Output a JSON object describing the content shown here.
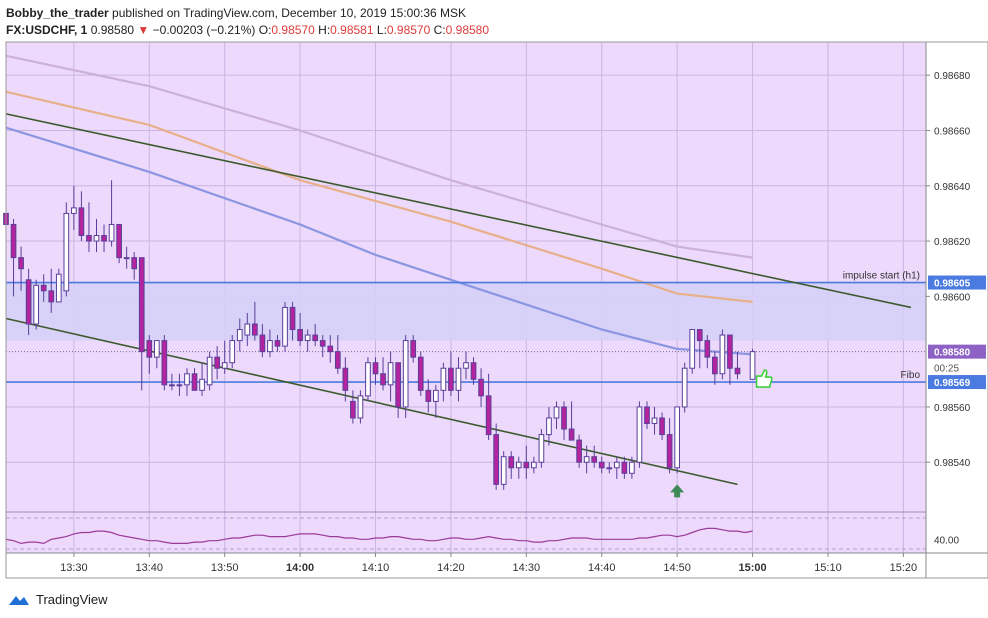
{
  "header": {
    "author": "Bobby_the_trader",
    "published_text": "published on TradingView.com, December 10, 2019 15:00:36 MSK",
    "symbol": "FX:USDCHF, 1",
    "last": "0.98580",
    "change_arrow": "▼",
    "change": "−0.00203 (−0.21%)",
    "o_label": "O:",
    "o": "0.98570",
    "h_label": "H:",
    "h": "0.98581",
    "l_label": "L:",
    "l": "0.98570",
    "c_label": "C:",
    "c": "0.98580"
  },
  "footer": {
    "brand": "TradingView",
    "logo_icon": "tradingview-logo-icon"
  },
  "colors": {
    "background": "#ecd9fb",
    "zone": "#d6d0f7",
    "up_candle": "#ffffff",
    "down_candle": "#b3249e",
    "candle_border": "#5a3f9a",
    "ma_fast": "#8c95e2",
    "ma_mid": "#e8b08a",
    "ma_slow": "#cbb1da",
    "trendline": "#3d5a2c",
    "level_line": "#4b7be0",
    "rsi": "#9c3a9a",
    "hand_icon": "#3ecf3e",
    "arrow_icon": "#3f8a57"
  },
  "chart_data": {
    "type": "candlestick",
    "symbol": "FX:USDCHF",
    "timeframe": "1",
    "ylim": [
      0.98522,
      0.98692
    ],
    "y_ticks": [
      "0.98680",
      "0.98660",
      "0.98640",
      "0.98620",
      "0.98600",
      "0.98560",
      "0.98540"
    ],
    "x_ticks": [
      "13:30",
      "13:40",
      "13:50",
      "14:00",
      "14:10",
      "14:20",
      "14:30",
      "14:40",
      "14:50",
      "15:00",
      "15:10",
      "15:20"
    ],
    "x_range_minutes": [
      "13:21",
      "15:23"
    ],
    "candles": [
      {
        "t": "13:21",
        "o": 0.9863,
        "h": 0.98638,
        "l": 0.98618,
        "c": 0.98626
      },
      {
        "t": "13:22",
        "o": 0.98626,
        "h": 0.98628,
        "l": 0.986,
        "c": 0.98614
      },
      {
        "t": "13:23",
        "o": 0.98614,
        "h": 0.98618,
        "l": 0.98602,
        "c": 0.9861
      },
      {
        "t": "13:24",
        "o": 0.98606,
        "h": 0.9861,
        "l": 0.98586,
        "c": 0.9859
      },
      {
        "t": "13:25",
        "o": 0.9859,
        "h": 0.98606,
        "l": 0.98588,
        "c": 0.98604
      },
      {
        "t": "13:26",
        "o": 0.98604,
        "h": 0.98608,
        "l": 0.98598,
        "c": 0.98602
      },
      {
        "t": "13:27",
        "o": 0.98602,
        "h": 0.9861,
        "l": 0.98594,
        "c": 0.98598
      },
      {
        "t": "13:28",
        "o": 0.98598,
        "h": 0.9861,
        "l": 0.98598,
        "c": 0.98608
      },
      {
        "t": "13:29",
        "o": 0.98602,
        "h": 0.98634,
        "l": 0.986,
        "c": 0.9863
      },
      {
        "t": "13:30",
        "o": 0.9863,
        "h": 0.9864,
        "l": 0.98624,
        "c": 0.98632
      },
      {
        "t": "13:31",
        "o": 0.98632,
        "h": 0.98638,
        "l": 0.9862,
        "c": 0.98622
      },
      {
        "t": "13:32",
        "o": 0.98622,
        "h": 0.98634,
        "l": 0.98616,
        "c": 0.9862
      },
      {
        "t": "13:33",
        "o": 0.9862,
        "h": 0.98628,
        "l": 0.98616,
        "c": 0.98622
      },
      {
        "t": "13:34",
        "o": 0.98622,
        "h": 0.98626,
        "l": 0.98616,
        "c": 0.9862
      },
      {
        "t": "13:35",
        "o": 0.9862,
        "h": 0.98642,
        "l": 0.98618,
        "c": 0.98626
      },
      {
        "t": "13:36",
        "o": 0.98626,
        "h": 0.98626,
        "l": 0.98612,
        "c": 0.98614
      },
      {
        "t": "13:37",
        "o": 0.98614,
        "h": 0.98618,
        "l": 0.9861,
        "c": 0.98614
      },
      {
        "t": "13:38",
        "o": 0.98614,
        "h": 0.98616,
        "l": 0.98606,
        "c": 0.9861
      },
      {
        "t": "13:39",
        "o": 0.98614,
        "h": 0.98614,
        "l": 0.98566,
        "c": 0.9858
      },
      {
        "t": "13:40",
        "o": 0.98584,
        "h": 0.98586,
        "l": 0.98572,
        "c": 0.98578
      },
      {
        "t": "13:41",
        "o": 0.98578,
        "h": 0.98584,
        "l": 0.98574,
        "c": 0.98584
      },
      {
        "t": "13:42",
        "o": 0.98584,
        "h": 0.98586,
        "l": 0.98566,
        "c": 0.98568
      },
      {
        "t": "13:43",
        "o": 0.98568,
        "h": 0.98572,
        "l": 0.98566,
        "c": 0.98568
      },
      {
        "t": "13:44",
        "o": 0.98568,
        "h": 0.98572,
        "l": 0.98564,
        "c": 0.98568
      },
      {
        "t": "13:45",
        "o": 0.98568,
        "h": 0.98574,
        "l": 0.98564,
        "c": 0.98572
      },
      {
        "t": "13:46",
        "o": 0.98572,
        "h": 0.98574,
        "l": 0.98566,
        "c": 0.98566
      },
      {
        "t": "13:47",
        "o": 0.98566,
        "h": 0.98576,
        "l": 0.98564,
        "c": 0.9857
      },
      {
        "t": "13:48",
        "o": 0.98568,
        "h": 0.9858,
        "l": 0.98566,
        "c": 0.98578
      },
      {
        "t": "13:49",
        "o": 0.98578,
        "h": 0.98582,
        "l": 0.9857,
        "c": 0.98574
      },
      {
        "t": "13:50",
        "o": 0.98574,
        "h": 0.98584,
        "l": 0.98572,
        "c": 0.98576
      },
      {
        "t": "13:51",
        "o": 0.98576,
        "h": 0.98586,
        "l": 0.98574,
        "c": 0.98584
      },
      {
        "t": "13:52",
        "o": 0.98584,
        "h": 0.98592,
        "l": 0.9858,
        "c": 0.98588
      },
      {
        "t": "13:53",
        "o": 0.98586,
        "h": 0.98594,
        "l": 0.98582,
        "c": 0.9859
      },
      {
        "t": "13:54",
        "o": 0.9859,
        "h": 0.98598,
        "l": 0.98584,
        "c": 0.98586
      },
      {
        "t": "13:55",
        "o": 0.98586,
        "h": 0.9859,
        "l": 0.98578,
        "c": 0.9858
      },
      {
        "t": "13:56",
        "o": 0.9858,
        "h": 0.98588,
        "l": 0.98578,
        "c": 0.98584
      },
      {
        "t": "13:57",
        "o": 0.98584,
        "h": 0.98586,
        "l": 0.9858,
        "c": 0.98582
      },
      {
        "t": "13:58",
        "o": 0.98582,
        "h": 0.98598,
        "l": 0.9858,
        "c": 0.98596
      },
      {
        "t": "13:59",
        "o": 0.98596,
        "h": 0.98598,
        "l": 0.98584,
        "c": 0.98588
      },
      {
        "t": "14:00",
        "o": 0.98588,
        "h": 0.98594,
        "l": 0.98582,
        "c": 0.98584
      },
      {
        "t": "14:01",
        "o": 0.98584,
        "h": 0.98588,
        "l": 0.9858,
        "c": 0.98586
      },
      {
        "t": "14:02",
        "o": 0.98586,
        "h": 0.9859,
        "l": 0.98582,
        "c": 0.98584
      },
      {
        "t": "14:03",
        "o": 0.98584,
        "h": 0.98586,
        "l": 0.98578,
        "c": 0.98582
      },
      {
        "t": "14:04",
        "o": 0.98582,
        "h": 0.98586,
        "l": 0.98576,
        "c": 0.9858
      },
      {
        "t": "14:05",
        "o": 0.9858,
        "h": 0.98586,
        "l": 0.98572,
        "c": 0.98574
      },
      {
        "t": "14:06",
        "o": 0.98574,
        "h": 0.98578,
        "l": 0.98562,
        "c": 0.98566
      },
      {
        "t": "14:07",
        "o": 0.98562,
        "h": 0.98566,
        "l": 0.98554,
        "c": 0.98556
      },
      {
        "t": "14:08",
        "o": 0.98556,
        "h": 0.98566,
        "l": 0.98554,
        "c": 0.98564
      },
      {
        "t": "14:09",
        "o": 0.98564,
        "h": 0.98578,
        "l": 0.98562,
        "c": 0.98576
      },
      {
        "t": "14:10",
        "o": 0.98576,
        "h": 0.98578,
        "l": 0.98568,
        "c": 0.98572
      },
      {
        "t": "14:11",
        "o": 0.98572,
        "h": 0.98578,
        "l": 0.98566,
        "c": 0.98568
      },
      {
        "t": "14:12",
        "o": 0.98568,
        "h": 0.9858,
        "l": 0.98562,
        "c": 0.98576
      },
      {
        "t": "14:13",
        "o": 0.98576,
        "h": 0.98576,
        "l": 0.98556,
        "c": 0.9856
      },
      {
        "t": "14:14",
        "o": 0.9856,
        "h": 0.98586,
        "l": 0.98556,
        "c": 0.98584
      },
      {
        "t": "14:15",
        "o": 0.98584,
        "h": 0.98586,
        "l": 0.98576,
        "c": 0.98578
      },
      {
        "t": "14:16",
        "o": 0.98578,
        "h": 0.9858,
        "l": 0.98564,
        "c": 0.98566
      },
      {
        "t": "14:17",
        "o": 0.98566,
        "h": 0.9857,
        "l": 0.98558,
        "c": 0.98562
      },
      {
        "t": "14:18",
        "o": 0.98562,
        "h": 0.98568,
        "l": 0.98556,
        "c": 0.98566
      },
      {
        "t": "14:19",
        "o": 0.98566,
        "h": 0.98576,
        "l": 0.98562,
        "c": 0.98574
      },
      {
        "t": "14:20",
        "o": 0.98574,
        "h": 0.9858,
        "l": 0.98564,
        "c": 0.98566
      },
      {
        "t": "14:21",
        "o": 0.98566,
        "h": 0.98578,
        "l": 0.98562,
        "c": 0.98574
      },
      {
        "t": "14:22",
        "o": 0.98574,
        "h": 0.9858,
        "l": 0.9857,
        "c": 0.98576
      },
      {
        "t": "14:23",
        "o": 0.98576,
        "h": 0.98578,
        "l": 0.98568,
        "c": 0.9857
      },
      {
        "t": "14:24",
        "o": 0.9857,
        "h": 0.98574,
        "l": 0.9856,
        "c": 0.98564
      },
      {
        "t": "14:25",
        "o": 0.98564,
        "h": 0.98572,
        "l": 0.98548,
        "c": 0.9855
      },
      {
        "t": "14:26",
        "o": 0.9855,
        "h": 0.98554,
        "l": 0.9853,
        "c": 0.98532
      },
      {
        "t": "14:27",
        "o": 0.98532,
        "h": 0.98544,
        "l": 0.9853,
        "c": 0.98542
      },
      {
        "t": "14:28",
        "o": 0.98542,
        "h": 0.98544,
        "l": 0.98534,
        "c": 0.98538
      },
      {
        "t": "14:29",
        "o": 0.98538,
        "h": 0.98542,
        "l": 0.98534,
        "c": 0.9854
      },
      {
        "t": "14:30",
        "o": 0.9854,
        "h": 0.98546,
        "l": 0.98534,
        "c": 0.98538
      },
      {
        "t": "14:31",
        "o": 0.98538,
        "h": 0.98542,
        "l": 0.98536,
        "c": 0.9854
      },
      {
        "t": "14:32",
        "o": 0.9854,
        "h": 0.98552,
        "l": 0.98538,
        "c": 0.9855
      },
      {
        "t": "14:33",
        "o": 0.9855,
        "h": 0.9856,
        "l": 0.98546,
        "c": 0.98556
      },
      {
        "t": "14:34",
        "o": 0.98556,
        "h": 0.98562,
        "l": 0.98552,
        "c": 0.9856
      },
      {
        "t": "14:35",
        "o": 0.9856,
        "h": 0.98562,
        "l": 0.98548,
        "c": 0.98552
      },
      {
        "t": "14:36",
        "o": 0.98552,
        "h": 0.98562,
        "l": 0.98548,
        "c": 0.98548
      },
      {
        "t": "14:37",
        "o": 0.98548,
        "h": 0.9855,
        "l": 0.98538,
        "c": 0.9854
      },
      {
        "t": "14:38",
        "o": 0.9854,
        "h": 0.98546,
        "l": 0.98536,
        "c": 0.98542
      },
      {
        "t": "14:39",
        "o": 0.98542,
        "h": 0.98546,
        "l": 0.98538,
        "c": 0.9854
      },
      {
        "t": "14:40",
        "o": 0.9854,
        "h": 0.98542,
        "l": 0.98536,
        "c": 0.98538
      },
      {
        "t": "14:41",
        "o": 0.98538,
        "h": 0.9854,
        "l": 0.98536,
        "c": 0.98538
      },
      {
        "t": "14:42",
        "o": 0.98538,
        "h": 0.98542,
        "l": 0.98534,
        "c": 0.9854
      },
      {
        "t": "14:43",
        "o": 0.9854,
        "h": 0.98542,
        "l": 0.98534,
        "c": 0.98536
      },
      {
        "t": "14:44",
        "o": 0.98536,
        "h": 0.98542,
        "l": 0.98534,
        "c": 0.9854
      },
      {
        "t": "14:45",
        "o": 0.9854,
        "h": 0.98562,
        "l": 0.98538,
        "c": 0.9856
      },
      {
        "t": "14:46",
        "o": 0.9856,
        "h": 0.98562,
        "l": 0.98552,
        "c": 0.98554
      },
      {
        "t": "14:47",
        "o": 0.98554,
        "h": 0.9856,
        "l": 0.9855,
        "c": 0.98556
      },
      {
        "t": "14:48",
        "o": 0.98556,
        "h": 0.98558,
        "l": 0.98548,
        "c": 0.9855
      },
      {
        "t": "14:49",
        "o": 0.9855,
        "h": 0.98556,
        "l": 0.98536,
        "c": 0.98538
      },
      {
        "t": "14:50",
        "o": 0.98538,
        "h": 0.9856,
        "l": 0.98536,
        "c": 0.9856
      },
      {
        "t": "14:51",
        "o": 0.9856,
        "h": 0.98576,
        "l": 0.98558,
        "c": 0.98574
      },
      {
        "t": "14:52",
        "o": 0.98574,
        "h": 0.98588,
        "l": 0.98572,
        "c": 0.98588
      },
      {
        "t": "14:53",
        "o": 0.98588,
        "h": 0.98588,
        "l": 0.98574,
        "c": 0.98584
      },
      {
        "t": "14:54",
        "o": 0.98584,
        "h": 0.98586,
        "l": 0.98574,
        "c": 0.98578
      },
      {
        "t": "14:55",
        "o": 0.98578,
        "h": 0.9858,
        "l": 0.98568,
        "c": 0.98572
      },
      {
        "t": "14:56",
        "o": 0.98572,
        "h": 0.98588,
        "l": 0.9857,
        "c": 0.98586
      },
      {
        "t": "14:57",
        "o": 0.98586,
        "h": 0.98586,
        "l": 0.98568,
        "c": 0.98574
      },
      {
        "t": "14:58",
        "o": 0.98574,
        "h": 0.9858,
        "l": 0.9857,
        "c": 0.98572
      },
      {
        "t": "15:00",
        "o": 0.9857,
        "h": 0.98581,
        "l": 0.9857,
        "c": 0.9858
      }
    ],
    "moving_averages": [
      {
        "color_key": "ma_slow",
        "points": [
          [
            "13:21",
            0.98687
          ],
          [
            "13:40",
            0.98676
          ],
          [
            "14:00",
            0.9866
          ],
          [
            "14:20",
            0.98642
          ],
          [
            "14:40",
            0.98626
          ],
          [
            "14:50",
            0.98618
          ],
          [
            "15:00",
            0.98614
          ]
        ]
      },
      {
        "color_key": "ma_mid",
        "points": [
          [
            "13:21",
            0.98674
          ],
          [
            "13:40",
            0.98662
          ],
          [
            "14:00",
            0.98642
          ],
          [
            "14:20",
            0.98627
          ],
          [
            "14:40",
            0.9861
          ],
          [
            "14:50",
            0.98601
          ],
          [
            "15:00",
            0.98598
          ]
        ]
      },
      {
        "color_key": "ma_fast",
        "points": [
          [
            "13:21",
            0.98661
          ],
          [
            "13:40",
            0.98645
          ],
          [
            "14:00",
            0.98626
          ],
          [
            "14:10",
            0.98615
          ],
          [
            "14:20",
            0.98606
          ],
          [
            "14:30",
            0.98597
          ],
          [
            "14:40",
            0.98588
          ],
          [
            "14:50",
            0.98581
          ],
          [
            "15:00",
            0.98579
          ]
        ]
      }
    ],
    "trendlines": [
      {
        "from": [
          "13:21",
          0.98666
        ],
        "to": [
          "15:21",
          0.98596
        ]
      },
      {
        "from": [
          "13:21",
          0.98592
        ],
        "to": [
          "14:58",
          0.98532
        ]
      }
    ],
    "horizontal_levels": [
      {
        "label": "impulse start (h1)",
        "value": 0.98605,
        "price_label": "0.98605"
      },
      {
        "label": "Fibo",
        "value": 0.98569,
        "price_label": "0.98569"
      }
    ],
    "zone": {
      "top": 0.98605,
      "bottom": 0.98584
    },
    "current_price": {
      "value": 0.9858,
      "label": "0.98580",
      "countdown": "00:25"
    },
    "rsi": {
      "tick_label": "40.00",
      "values": [
        40,
        39,
        37,
        38,
        38,
        37,
        40,
        41,
        42,
        44,
        45,
        45,
        46,
        46,
        45,
        43,
        42,
        41,
        40,
        39,
        39,
        38,
        37,
        37,
        37,
        38,
        38,
        39,
        39,
        40,
        41,
        41,
        42,
        43,
        43,
        42,
        42,
        42,
        43,
        44,
        44,
        44,
        43,
        42,
        42,
        41,
        41,
        40,
        40,
        41,
        41,
        42,
        42,
        41,
        40,
        40,
        39,
        39,
        40,
        41,
        41,
        40,
        40,
        41,
        42,
        41,
        40,
        40,
        39,
        39,
        38,
        38,
        39,
        39,
        40,
        41,
        41,
        41,
        40,
        40,
        40,
        40,
        40,
        40,
        41,
        41,
        42,
        43,
        43,
        42,
        43,
        45,
        47,
        48,
        48,
        47,
        46,
        46,
        45,
        46
      ]
    }
  }
}
